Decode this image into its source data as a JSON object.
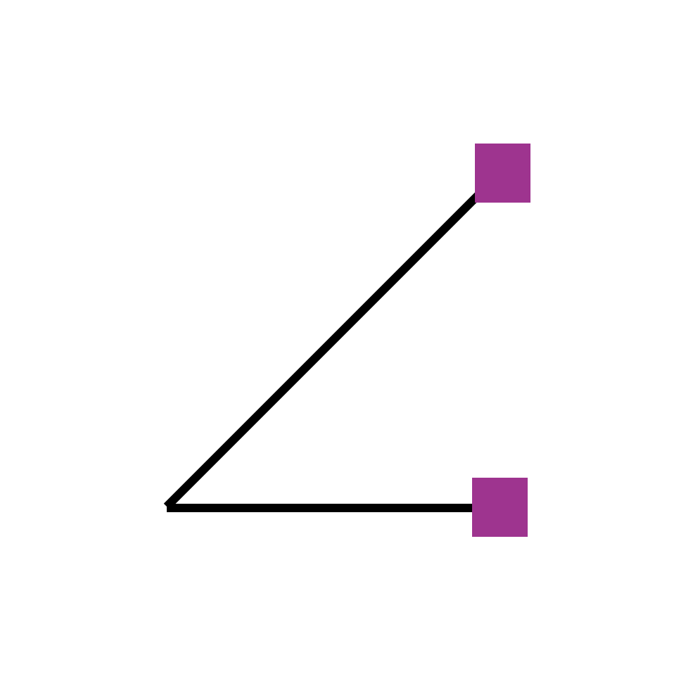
{
  "diagram": {
    "kind": "angle",
    "line_color": "#000000",
    "marker_color": "#9E348F",
    "background_color": "#FFFFFF",
    "vertex": {
      "label": ""
    },
    "rays": [
      {
        "name": "upper-ray",
        "end_marker": "square",
        "label": ""
      },
      {
        "name": "lower-ray",
        "end_marker": "square",
        "label": ""
      }
    ]
  }
}
